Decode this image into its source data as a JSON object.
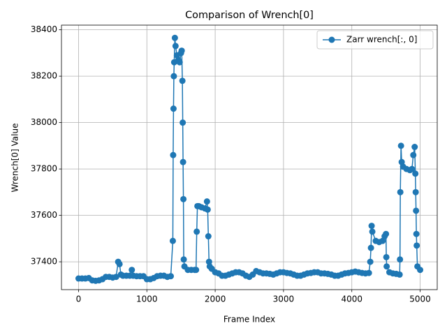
{
  "chart_data": {
    "type": "line",
    "title": "Comparison of Wrench[0]",
    "x_label": "Frame Index",
    "y_label": "Wrench[0] Value",
    "x": [
      0,
      50,
      100,
      150,
      200,
      250,
      300,
      350,
      400,
      450,
      500,
      550,
      580,
      600,
      620,
      650,
      700,
      750,
      780,
      800,
      850,
      900,
      950,
      1000,
      1050,
      1100,
      1150,
      1200,
      1250,
      1300,
      1350,
      1380,
      1385,
      1390,
      1395,
      1400,
      1410,
      1420,
      1440,
      1460,
      1480,
      1500,
      1510,
      1520,
      1525,
      1530,
      1535,
      1540,
      1550,
      1600,
      1650,
      1700,
      1720,
      1730,
      1740,
      1760,
      1800,
      1850,
      1880,
      1890,
      1900,
      1910,
      1920,
      1950,
      2000,
      2050,
      2100,
      2150,
      2200,
      2250,
      2300,
      2350,
      2400,
      2450,
      2500,
      2550,
      2600,
      2650,
      2700,
      2750,
      2800,
      2850,
      2900,
      2950,
      3000,
      3050,
      3100,
      3150,
      3200,
      3250,
      3300,
      3350,
      3400,
      3450,
      3500,
      3550,
      3600,
      3650,
      3700,
      3750,
      3800,
      3850,
      3900,
      3950,
      4000,
      4050,
      4100,
      4150,
      4200,
      4250,
      4270,
      4280,
      4290,
      4300,
      4350,
      4400,
      4450,
      4480,
      4500,
      4505,
      4510,
      4550,
      4600,
      4650,
      4700,
      4705,
      4710,
      4720,
      4730,
      4750,
      4800,
      4850,
      4880,
      4900,
      4920,
      4930,
      4935,
      4940,
      4945,
      4950,
      4960,
      5000
    ],
    "series": [
      {
        "name": "Zarr wrench[:, 0]",
        "color": "#1f77b4",
        "values": [
          37328,
          37328,
          37328,
          37330,
          37320,
          37318,
          37320,
          37325,
          37335,
          37335,
          37332,
          37335,
          37400,
          37390,
          37345,
          37340,
          37340,
          37340,
          37365,
          37340,
          37338,
          37338,
          37338,
          37325,
          37325,
          37330,
          37338,
          37340,
          37340,
          37335,
          37338,
          37490,
          37860,
          38060,
          38200,
          38260,
          38365,
          38330,
          38290,
          38270,
          38260,
          38300,
          38310,
          38180,
          38000,
          37830,
          37670,
          37410,
          37380,
          37365,
          37365,
          37365,
          37365,
          37530,
          37640,
          37640,
          37635,
          37630,
          37660,
          37625,
          37510,
          37400,
          37380,
          37370,
          37355,
          37350,
          37340,
          37340,
          37345,
          37350,
          37355,
          37355,
          37350,
          37340,
          37335,
          37345,
          37360,
          37355,
          37350,
          37350,
          37348,
          37345,
          37350,
          37355,
          37355,
          37352,
          37350,
          37345,
          37340,
          37340,
          37345,
          37350,
          37352,
          37355,
          37355,
          37350,
          37350,
          37348,
          37345,
          37340,
          37340,
          37345,
          37350,
          37352,
          37355,
          37358,
          37355,
          37352,
          37350,
          37352,
          37400,
          37460,
          37555,
          37530,
          37490,
          37485,
          37490,
          37510,
          37520,
          37420,
          37380,
          37355,
          37350,
          37348,
          37345,
          37410,
          37700,
          37900,
          37830,
          37810,
          37800,
          37795,
          37800,
          37860,
          37895,
          37780,
          37700,
          37620,
          37520,
          37470,
          37380,
          37365
        ]
      }
    ],
    "xlim": [
      -250,
      5250
    ],
    "ylim": [
      37280,
      38420
    ],
    "xticks": [
      0,
      1000,
      2000,
      3000,
      4000,
      5000
    ],
    "yticks": [
      37400,
      37600,
      37800,
      38000,
      38200,
      38400
    ],
    "grid": true,
    "legend": "upper right"
  }
}
